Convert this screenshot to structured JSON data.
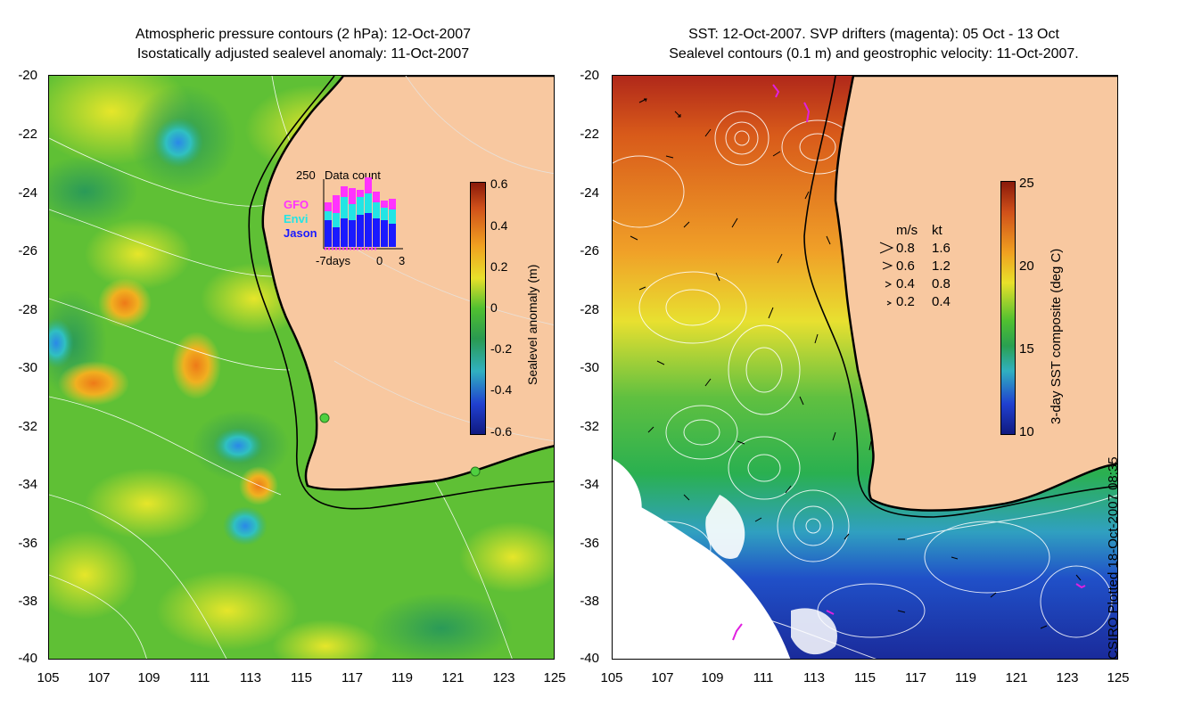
{
  "left_panel": {
    "title_line1": "Atmospheric pressure contours (2 hPa): 12-Oct-2007",
    "title_line2": "Isostatically adjusted sealevel anomaly: 11-Oct-2007",
    "colorbar": {
      "label": "Sealevel anomaly (m)",
      "ticks": [
        "0.6",
        "0.4",
        "0.2",
        "0",
        "-0.2",
        "-0.4",
        "-0.6"
      ]
    },
    "inset": {
      "title": "Data count",
      "max_label": "250",
      "legend": [
        {
          "name": "GFO",
          "color": "#ff33ff"
        },
        {
          "name": "Envi",
          "color": "#22e5e5"
        },
        {
          "name": "Jason",
          "color": "#1a1aff"
        }
      ],
      "x_labels": [
        "-7days",
        "0",
        "3"
      ]
    }
  },
  "right_panel": {
    "title_line1": "SST: 12-Oct-2007. SVP drifters (magenta): 05 Oct - 13 Oct",
    "title_line2": "Sealevel contours (0.1 m) and geostrophic velocity: 11-Oct-2007.",
    "colorbar": {
      "label": "3-day SST composite (deg C)",
      "ticks": [
        "25",
        "20",
        "15",
        "10"
      ]
    },
    "velocity_legend": {
      "header_ms": "m/s",
      "header_kt": "kt",
      "rows": [
        {
          "ms": "0.8",
          "kt": "1.6"
        },
        {
          "ms": "0.6",
          "kt": "1.2"
        },
        {
          "ms": "0.4",
          "kt": "0.8"
        },
        {
          "ms": "0.2",
          "kt": "0.4"
        }
      ]
    }
  },
  "axes": {
    "y_ticks": [
      "-20",
      "-22",
      "-24",
      "-26",
      "-28",
      "-30",
      "-32",
      "-34",
      "-36",
      "-38",
      "-40"
    ],
    "x_ticks": [
      "105",
      "107",
      "109",
      "111",
      "113",
      "115",
      "117",
      "119",
      "121",
      "123",
      "125"
    ]
  },
  "credit": "CSIRO Plotted 18-Oct-2007 08:35",
  "colors": {
    "land": "#f8c8a0",
    "ocean_mid": "#5fc035",
    "sst_warm": "#e08020",
    "sst_cold": "#1a2ab0"
  }
}
